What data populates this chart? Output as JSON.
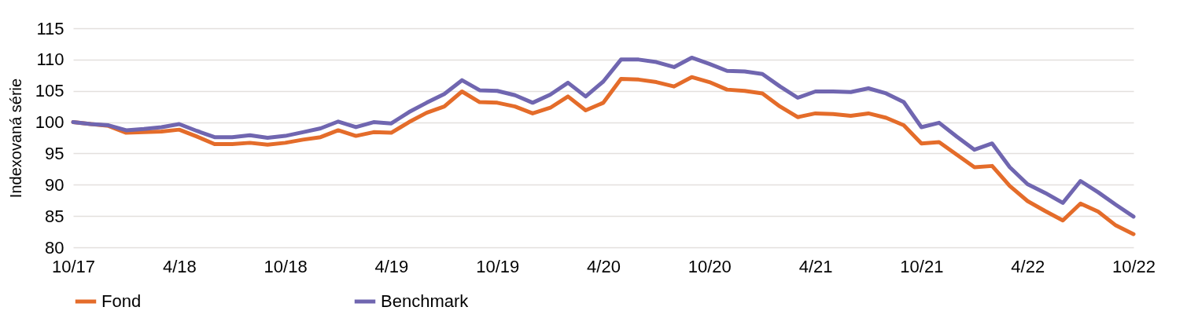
{
  "chart_data": {
    "type": "line",
    "ylabel": "Indexovaná série",
    "categories": [
      "10/17",
      null,
      null,
      null,
      null,
      null,
      "4/18",
      null,
      null,
      null,
      null,
      null,
      "10/18",
      null,
      null,
      null,
      null,
      null,
      "4/19",
      null,
      null,
      null,
      null,
      null,
      "10/19",
      null,
      null,
      null,
      null,
      null,
      "4/20",
      null,
      null,
      null,
      null,
      null,
      "10/20",
      null,
      null,
      null,
      null,
      null,
      "4/21",
      null,
      null,
      null,
      null,
      null,
      "10/21",
      null,
      null,
      null,
      null,
      null,
      "4/22",
      null,
      null,
      null,
      null,
      null,
      "10/22"
    ],
    "series": [
      {
        "name": "Fond",
        "color": "#e46c2a",
        "values": [
          100.0,
          99.7,
          99.4,
          98.3,
          98.4,
          98.5,
          98.8,
          97.7,
          96.5,
          96.5,
          96.7,
          96.4,
          96.7,
          97.2,
          97.6,
          98.7,
          97.8,
          98.4,
          98.3,
          100.0,
          101.5,
          102.5,
          104.9,
          103.2,
          103.1,
          102.5,
          101.4,
          102.3,
          104.1,
          101.9,
          103.1,
          106.9,
          106.8,
          106.4,
          105.7,
          107.2,
          106.4,
          105.2,
          105.0,
          104.6,
          102.5,
          100.8,
          101.4,
          101.3,
          101.0,
          101.4,
          100.7,
          99.5,
          96.6,
          96.8,
          94.8,
          92.8,
          93.0,
          89.8,
          87.4,
          85.8,
          84.3,
          87.0,
          85.7,
          83.5,
          82.1
        ]
      },
      {
        "name": "Benchmark",
        "color": "#7066b0",
        "values": [
          100.0,
          99.7,
          99.5,
          98.7,
          98.9,
          99.2,
          99.7,
          98.6,
          97.6,
          97.6,
          97.9,
          97.5,
          97.8,
          98.4,
          99.0,
          100.1,
          99.2,
          100.0,
          99.8,
          101.6,
          103.1,
          104.5,
          106.7,
          105.1,
          105.0,
          104.3,
          103.1,
          104.4,
          106.3,
          104.1,
          106.5,
          110.0,
          110.0,
          109.6,
          108.8,
          110.3,
          109.3,
          108.2,
          108.1,
          107.7,
          105.7,
          103.9,
          104.9,
          104.9,
          104.8,
          105.4,
          104.6,
          103.2,
          99.2,
          99.9,
          97.7,
          95.6,
          96.6,
          92.8,
          90.1,
          88.7,
          87.1,
          90.6,
          88.8,
          86.8,
          84.9
        ]
      }
    ],
    "ylim": [
      80,
      115
    ],
    "yticks": [
      80,
      85,
      90,
      95,
      100,
      105,
      110,
      115
    ],
    "grid": "y",
    "legend": "bottom",
    "marker": "none",
    "line_style": "solid"
  }
}
